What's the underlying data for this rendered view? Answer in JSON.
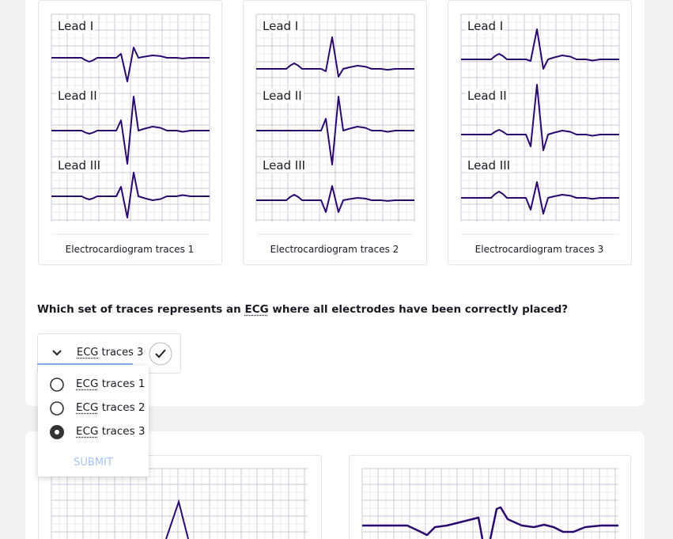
{
  "cards": [
    {
      "leads": [
        "Lead I",
        "Lead II",
        "Lead III"
      ],
      "caption": "Electrocardiogram traces 1"
    },
    {
      "leads": [
        "Lead I",
        "Lead II",
        "Lead III"
      ],
      "caption": "Electrocardiogram traces 2"
    },
    {
      "leads": [
        "Lead I",
        "Lead II",
        "Lead III"
      ],
      "caption": "Electrocardiogram traces 3"
    }
  ],
  "question": {
    "before": "Which set of traces represents an",
    "abbr": "ECG",
    "after": "where all electrodes have been correctly placed?"
  },
  "dropdown": {
    "selected": {
      "abbr": "ECG",
      "rest": "traces 3"
    },
    "options": [
      {
        "abbr": "ECG",
        "rest": "traces 1"
      },
      {
        "abbr": "ECG",
        "rest": "traces 2"
      },
      {
        "abbr": "ECG",
        "rest": "traces 3"
      }
    ],
    "submit": "SUBMIT"
  }
}
